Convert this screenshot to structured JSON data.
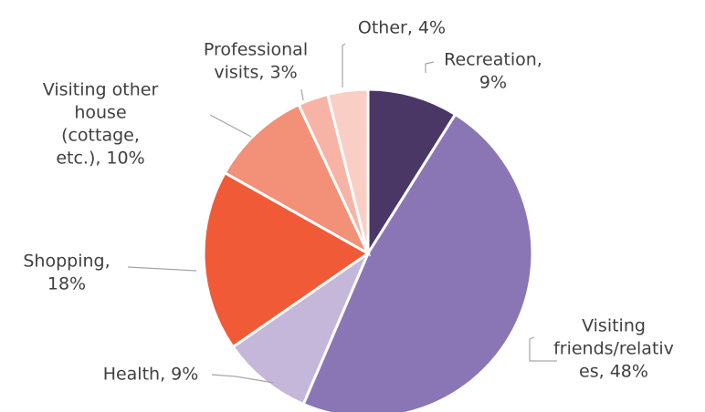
{
  "chart_data": {
    "type": "pie",
    "labels": [
      [
        "Recreation,",
        "9%"
      ],
      [
        "Visiting",
        "friends/relativ",
        "es, 48%"
      ],
      [
        "Health, 9%"
      ],
      [
        "Shopping,",
        "18%"
      ],
      [
        "Visiting other",
        "house",
        "(cottage,",
        "etc.), 10%"
      ],
      [
        "Professional",
        "visits, 3%"
      ],
      [
        "Other, 4%"
      ]
    ],
    "values": [
      9,
      48,
      9,
      18,
      10,
      3,
      4
    ],
    "colors": [
      "#4a3766",
      "#8a76b4",
      "#c4b7da",
      "#f05a37",
      "#f29078",
      "#f7b4a6",
      "#f9cfc5"
    ]
  }
}
